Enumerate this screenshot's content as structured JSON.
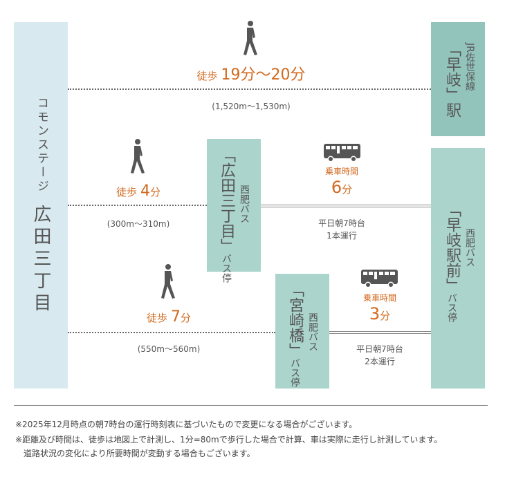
{
  "origin": {
    "sub": "コモンステージ",
    "name": "広田三丁目"
  },
  "jr_station": {
    "line": "JR佐世保線",
    "name": "「早岐」駅"
  },
  "hirota_stop": {
    "name": "「広田三丁目」",
    "operator": "西肥バス",
    "suffix": "バス停"
  },
  "miyazaki_stop": {
    "name": "「宮崎橋」",
    "operator": "西肥バス",
    "suffix": "バス停"
  },
  "ekimae_stop": {
    "name": "「早岐駅前」",
    "operator": "西肥バス",
    "suffix": "バス停"
  },
  "route_jr": {
    "walk_prefix": "徒歩",
    "walk_time": "19分〜20分",
    "distance": "(1,520m〜1,530m)"
  },
  "route_hirota": {
    "walk_prefix": "徒歩",
    "walk_num": "4",
    "walk_unit": "分",
    "distance": "(300m〜310m)",
    "ride_label": "乗車時間",
    "ride_num": "6",
    "ride_unit": "分",
    "schedule_1": "平日朝7時台",
    "schedule_2": "1本運行"
  },
  "route_miyazaki": {
    "walk_prefix": "徒歩",
    "walk_num": "7",
    "walk_unit": "分",
    "distance": "(550m〜560m)",
    "ride_label": "乗車時間",
    "ride_num": "3",
    "ride_unit": "分",
    "schedule_1": "平日朝7時台",
    "schedule_2": "2本運行"
  },
  "notes": [
    "※2025年12月時点の朝7時台の運行時刻表に基づいたもので変更になる場合がございます。",
    "※距離及び時間は、徒歩は地図上で計測し、1分=80mで歩行した場合で計算、車は実際に走行し計測しています。",
    "　道路状況の変化により所要時間が変動する場合もございます。"
  ],
  "colors": {
    "origin": "#d8e9ef",
    "station": "#93c4bc",
    "stop": "#abd4cd",
    "accent": "#d2691e"
  }
}
